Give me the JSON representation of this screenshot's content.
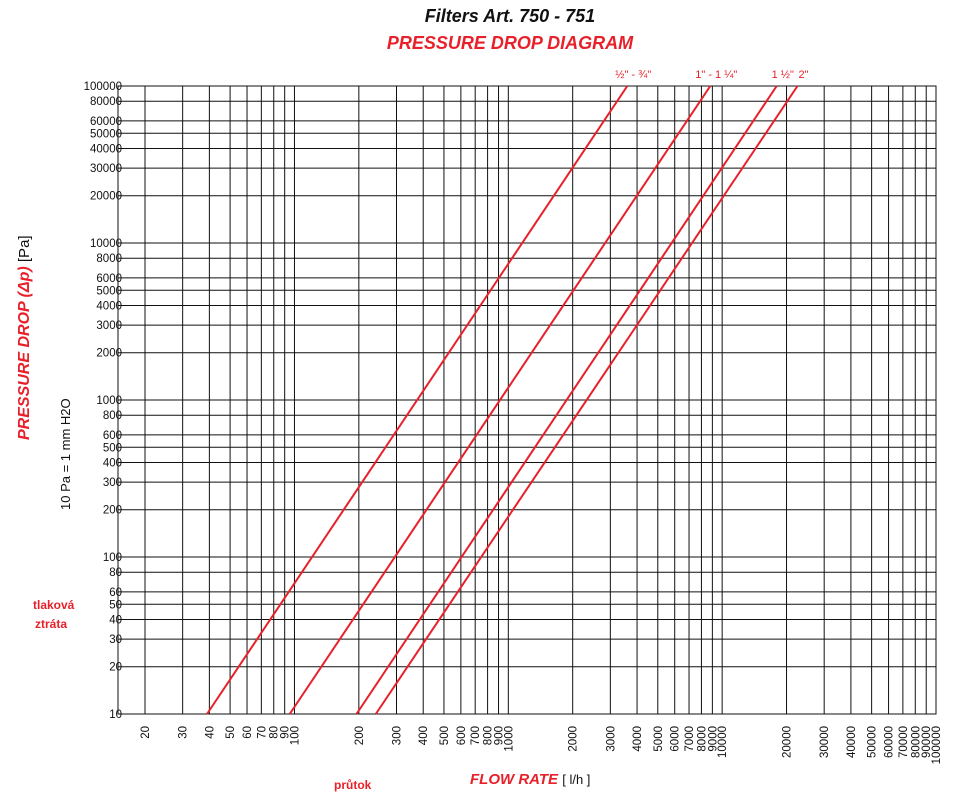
{
  "title": "Filters Art. 750 - 751",
  "subtitle": "PRESSURE DROP DIAGRAM",
  "ylabel_main": "PRESSURE DROP (Δp)",
  "ylabel_unit": "[Pa]",
  "ylabel_note": "10 Pa = 1 mm  H2O",
  "xlabel_main": "FLOW RATE",
  "xlabel_unit": "[ l/h ]",
  "note_pressure_loss_line1": "tlaková",
  "note_pressure_loss_line2": "ztráta",
  "note_flow": "průtok",
  "colors": {
    "series": "#e8202a",
    "grid": "#111111",
    "accent": "#e8202a"
  },
  "chart_data": {
    "type": "line",
    "x_scale": "log",
    "y_scale": "log",
    "xlim": [
      15,
      100000
    ],
    "ylim": [
      10,
      100000
    ],
    "grid": true,
    "legend": "line-end labels at top",
    "x_ticks": [
      20,
      30,
      40,
      50,
      60,
      70,
      80,
      90,
      100,
      200,
      300,
      400,
      500,
      600,
      700,
      800,
      900,
      1000,
      2000,
      3000,
      4000,
      5000,
      6000,
      7000,
      8000,
      9000,
      10000,
      20000,
      30000,
      40000,
      50000,
      60000,
      70000,
      80000,
      90000,
      100000
    ],
    "y_ticks": [
      10,
      20,
      30,
      40,
      50,
      60,
      80,
      100,
      200,
      300,
      400,
      500,
      600,
      800,
      1000,
      2000,
      3000,
      4000,
      5000,
      6000,
      8000,
      10000,
      20000,
      30000,
      40000,
      50000,
      60000,
      80000,
      100000
    ],
    "series": [
      {
        "name": "½\" - ¾\"",
        "x": [
          39,
          3600
        ],
        "y": [
          10,
          100000
        ]
      },
      {
        "name": "1\" - 1 ¼\"",
        "x": [
          95,
          8800
        ],
        "y": [
          10,
          100000
        ]
      },
      {
        "name": "1 ½\"",
        "x": [
          195,
          18000
        ],
        "y": [
          10,
          100000
        ]
      },
      {
        "name": "2\"",
        "x": [
          240,
          22500
        ],
        "y": [
          10,
          100000
        ]
      }
    ]
  }
}
